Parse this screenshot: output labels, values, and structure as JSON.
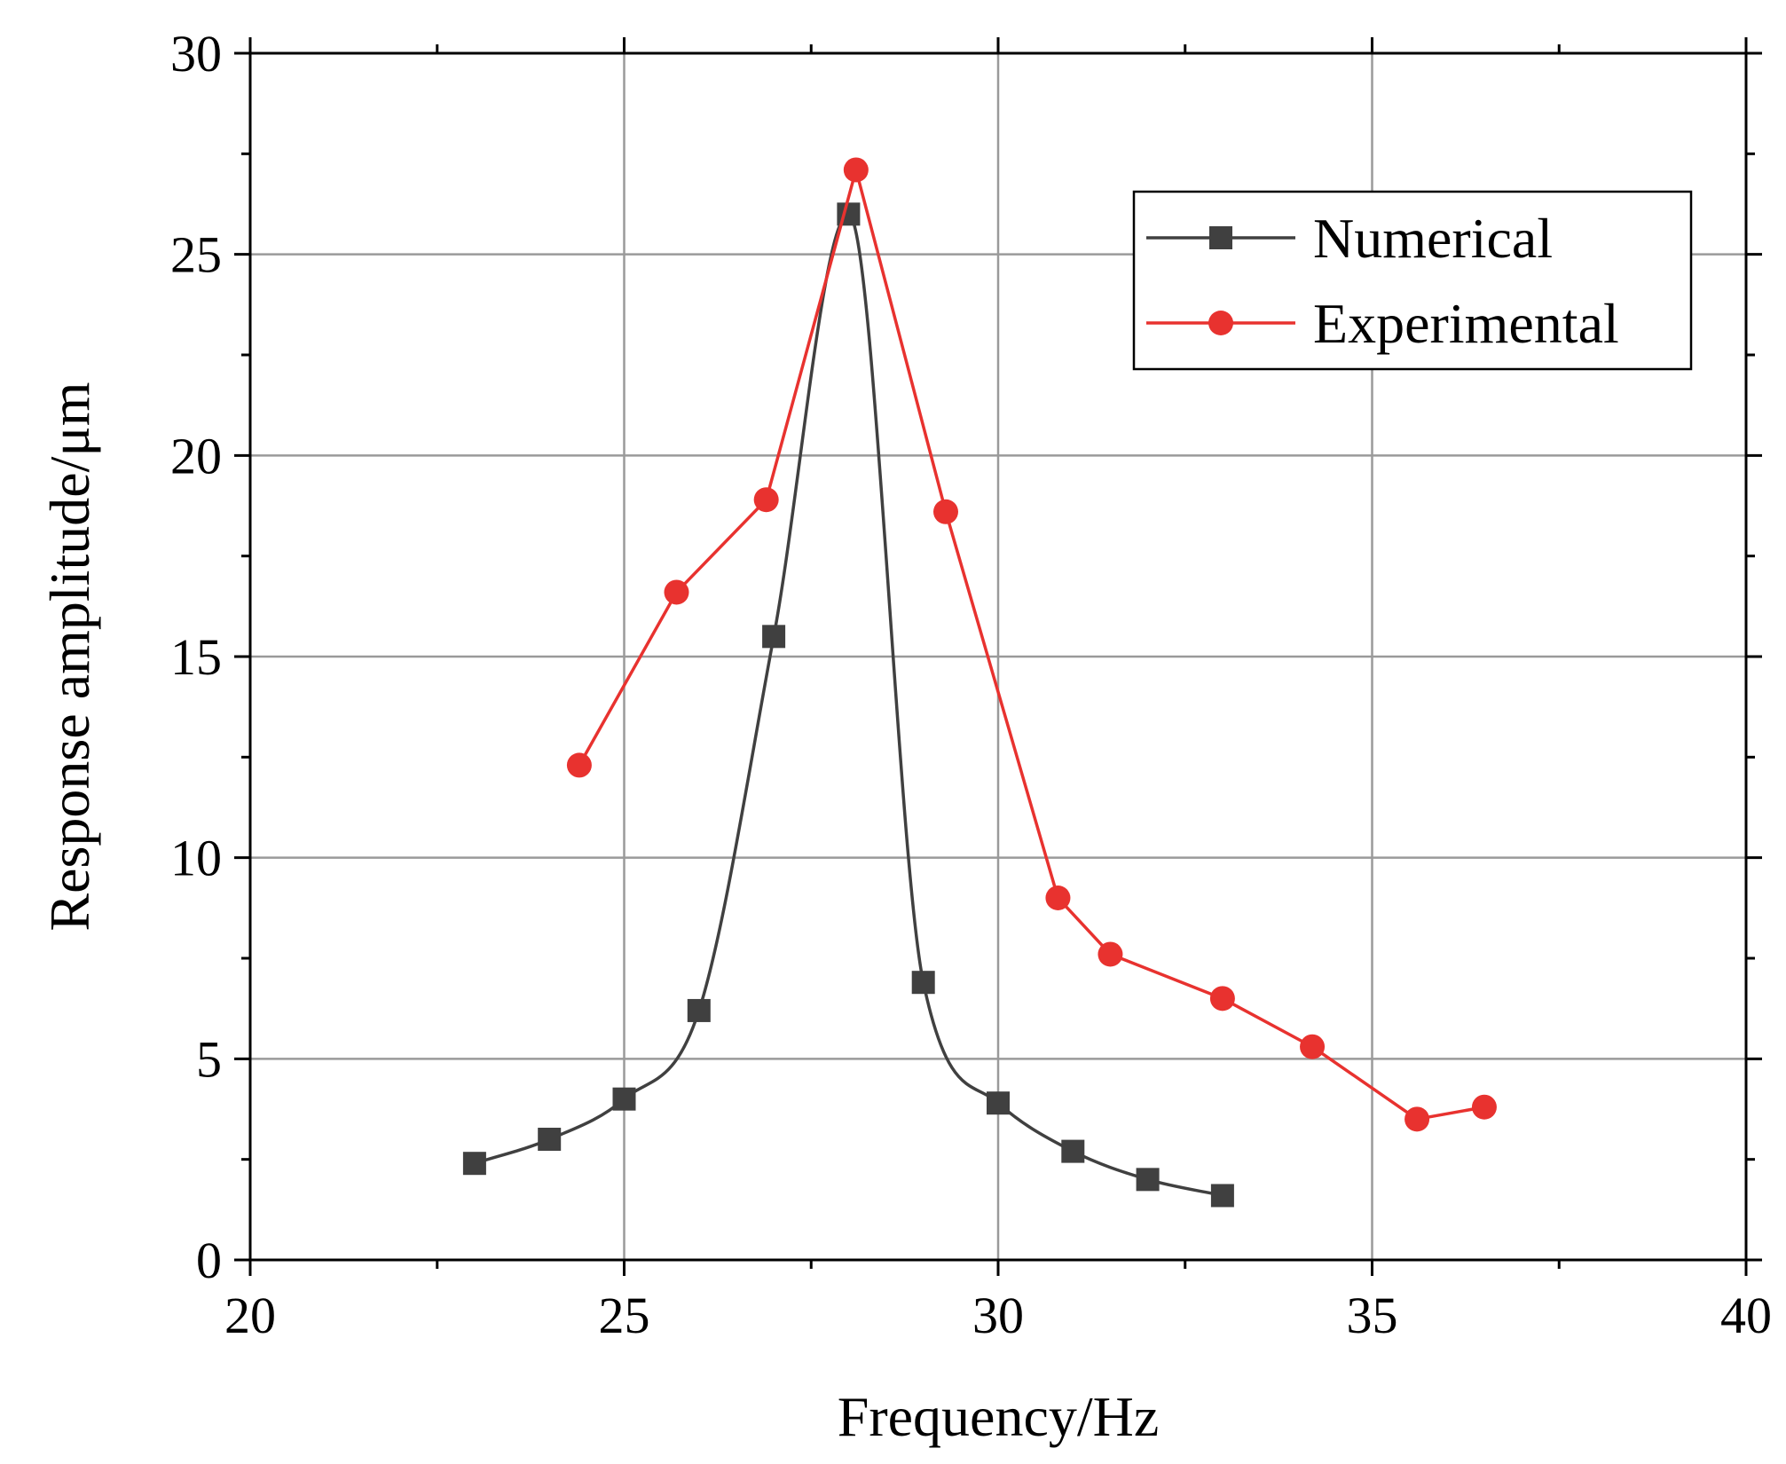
{
  "chart_data": {
    "type": "line",
    "title": "",
    "xlabel": "Frequency/Hz",
    "ylabel": "Response amplitude/μm",
    "xlim": [
      20,
      40
    ],
    "ylim": [
      0,
      30
    ],
    "xticks": [
      20,
      25,
      30,
      35,
      40
    ],
    "yticks": [
      0,
      5,
      10,
      15,
      20,
      25,
      30
    ],
    "grid": true,
    "legend_position": "top-right",
    "series": [
      {
        "name": "Numerical",
        "color": "#404040",
        "marker": "square",
        "smooth": true,
        "x": [
          23,
          24,
          25,
          26,
          27,
          28,
          29,
          30,
          31,
          32,
          33
        ],
        "y": [
          2.4,
          3.0,
          4.0,
          6.2,
          15.5,
          26.0,
          6.9,
          3.9,
          2.7,
          2.0,
          1.6
        ]
      },
      {
        "name": "Experimental",
        "color": "#e8322f",
        "marker": "circle",
        "smooth": false,
        "x": [
          24.4,
          25.7,
          26.9,
          28.1,
          29.3,
          30.8,
          31.5,
          33.0,
          34.2,
          35.6,
          36.5
        ],
        "y": [
          12.3,
          16.6,
          18.9,
          27.1,
          18.6,
          9.0,
          7.6,
          6.5,
          5.3,
          3.5,
          3.8
        ]
      }
    ]
  }
}
